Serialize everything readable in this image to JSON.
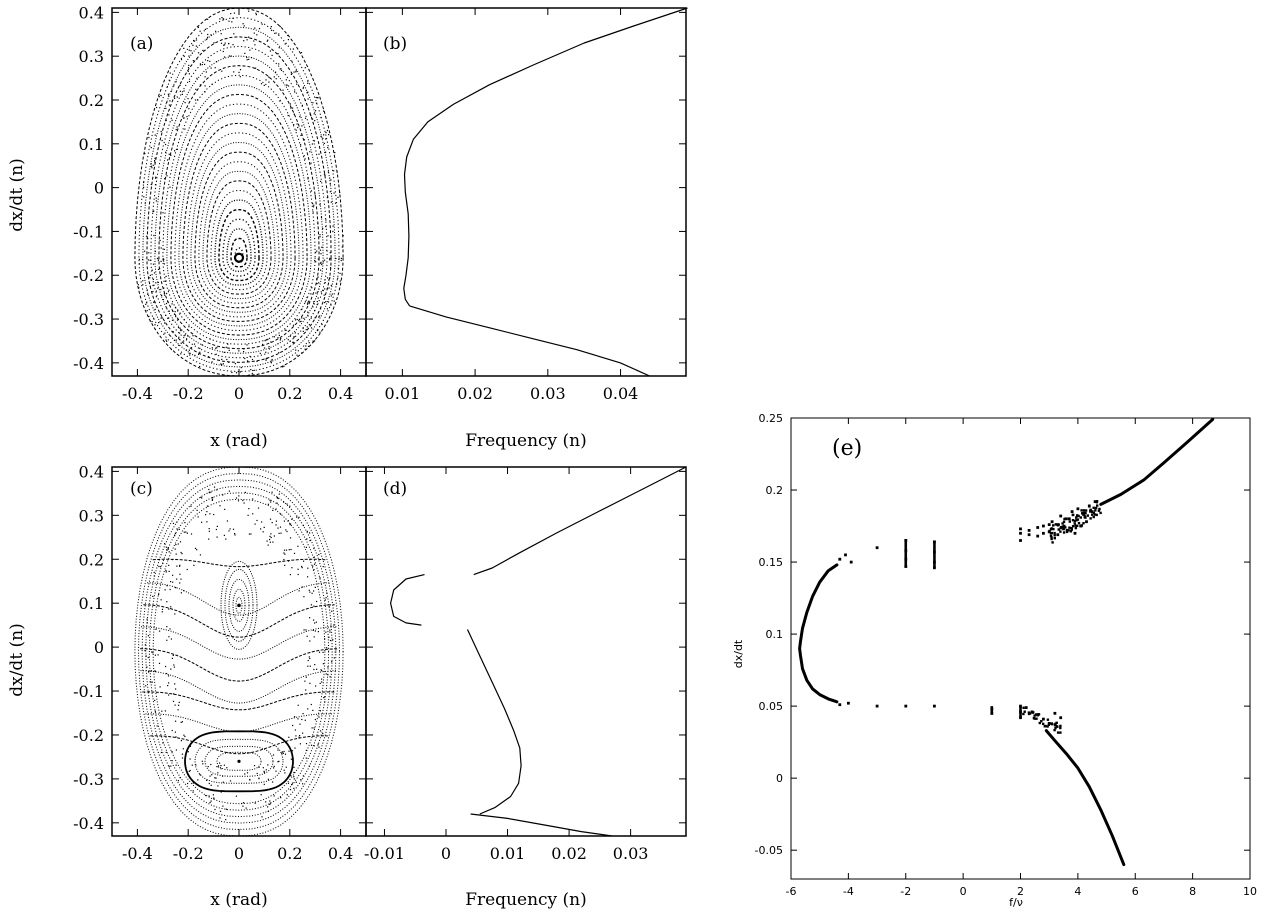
{
  "figure": {
    "colors": {
      "ink": "#000000",
      "background": "#ffffff"
    }
  },
  "chart_data": [
    {
      "panel": "a",
      "label": "(a)",
      "type": "scatter",
      "xlabel": "x (rad)",
      "ylabel": "dx/dt (n)",
      "xlim": [
        -0.5,
        0.5
      ],
      "ylim": [
        -0.43,
        0.41
      ],
      "xticks": [
        "-0.4",
        "-0.2",
        "0",
        "0.2",
        "0.4"
      ],
      "yticks": [
        "-0.4",
        "-0.3",
        "-0.2",
        "-0.1",
        "0",
        "0.1",
        "0.2",
        "0.3",
        "0.4"
      ],
      "center": [
        0,
        -0.16
      ],
      "separatrix": 0.41,
      "outer_level": 0.41,
      "grid": false
    },
    {
      "panel": "b",
      "label": "(b)",
      "type": "line",
      "xlabel": "Frequency (n)",
      "xlim": [
        0.005,
        0.049
      ],
      "ylim": [
        -0.43,
        0.41
      ],
      "xticks": [
        "0.01",
        "0.02",
        "0.03",
        "0.04"
      ],
      "series": [
        {
          "x": [
            0.0492,
            0.042,
            0.035,
            0.028,
            0.022,
            0.017,
            0.0135,
            0.0115,
            0.0106,
            0.0103,
            0.0104,
            0.0108,
            0.0109,
            0.0108,
            0.0105,
            0.0102,
            0.0104,
            0.011
          ],
          "y": [
            0.41,
            0.37,
            0.33,
            0.28,
            0.235,
            0.19,
            0.15,
            0.11,
            0.07,
            0.03,
            -0.01,
            -0.06,
            -0.11,
            -0.16,
            -0.2,
            -0.23,
            -0.255,
            -0.27
          ]
        },
        {
          "x": [
            0.011,
            0.016,
            0.022,
            0.028,
            0.034,
            0.04,
            0.044
          ],
          "y": [
            -0.27,
            -0.295,
            -0.32,
            -0.345,
            -0.37,
            -0.4,
            -0.43
          ]
        }
      ],
      "grid": false
    },
    {
      "panel": "c",
      "label": "(c)",
      "type": "scatter",
      "xlabel": "x (rad)",
      "ylabel": "dx/dt (n)",
      "xlim": [
        -0.5,
        0.5
      ],
      "ylim": [
        -0.43,
        0.41
      ],
      "xticks": [
        "-0.4",
        "-0.2",
        "0",
        "0.2",
        "0.4"
      ],
      "yticks": [
        "-0.4",
        "-0.3",
        "-0.2",
        "-0.1",
        "0",
        "0.1",
        "0.2",
        "0.3",
        "0.4"
      ],
      "centers": [
        [
          0,
          0.095
        ],
        [
          0,
          -0.26
        ]
      ],
      "grid": false
    },
    {
      "panel": "d",
      "label": "(d)",
      "type": "line",
      "xlabel": "Frequency (n)",
      "xlim": [
        -0.013,
        0.039
      ],
      "ylim": [
        -0.43,
        0.41
      ],
      "xticks": [
        "-0.01",
        "0",
        "0.01",
        "0.02",
        "0.03"
      ],
      "series": [
        {
          "x": [
            0.039,
            0.032,
            0.025,
            0.018,
            0.012,
            0.0075,
            0.0045
          ],
          "y": [
            0.41,
            0.36,
            0.31,
            0.26,
            0.215,
            0.18,
            0.165
          ]
        },
        {
          "x": [
            -0.0035,
            -0.0065,
            -0.0085,
            -0.009,
            -0.0085,
            -0.0065,
            -0.004
          ],
          "y": [
            0.165,
            0.155,
            0.13,
            0.1,
            0.07,
            0.055,
            0.05
          ]
        },
        {
          "x": [
            0.0035,
            0.0055,
            0.0075,
            0.0095,
            0.011,
            0.012,
            0.0122,
            0.0118,
            0.0105,
            0.008,
            0.0055
          ],
          "y": [
            0.04,
            -0.02,
            -0.08,
            -0.14,
            -0.19,
            -0.23,
            -0.27,
            -0.31,
            -0.34,
            -0.365,
            -0.38
          ]
        },
        {
          "x": [
            0.004,
            0.01,
            0.016,
            0.022,
            0.027
          ],
          "y": [
            -0.38,
            -0.39,
            -0.405,
            -0.42,
            -0.43
          ]
        }
      ],
      "grid": false
    },
    {
      "panel": "e",
      "label": "(e)",
      "type": "scatter",
      "xlabel": "f/ν",
      "ylabel": "dx/dt",
      "xlim": [
        -6,
        10
      ],
      "ylim": [
        -0.07,
        0.25
      ],
      "xticks": [
        "-6",
        "-4",
        "-2",
        "0",
        "2",
        "4",
        "6",
        "8",
        "10"
      ],
      "yticks": [
        "-0.05",
        "0",
        "0.05",
        "0.1",
        "0.15",
        "0.2",
        "0.25"
      ],
      "series": [
        {
          "x": [
            -4.4,
            -4.7,
            -5.0,
            -5.25,
            -5.45,
            -5.6,
            -5.67,
            -5.7,
            -5.67,
            -5.6,
            -5.45,
            -5.25,
            -5.0,
            -4.7,
            -4.4
          ],
          "y": [
            0.148,
            0.144,
            0.136,
            0.126,
            0.115,
            0.104,
            0.095,
            0.09,
            0.085,
            0.076,
            0.068,
            0.062,
            0.058,
            0.055,
            0.053
          ]
        },
        {
          "x": [
            4.8,
            5.5,
            6.3,
            7.0,
            7.8,
            8.7
          ],
          "y": [
            0.19,
            0.197,
            0.207,
            0.219,
            0.233,
            0.249
          ]
        },
        {
          "x": [
            2.9,
            3.2,
            3.6,
            4.0,
            4.4,
            4.8,
            5.2,
            5.6
          ],
          "y": [
            0.033,
            0.026,
            0.017,
            0.007,
            -0.006,
            -0.022,
            -0.04,
            -0.06
          ]
        },
        {
          "x": [
            -4.3,
            -4.1,
            -3.9,
            -3.0,
            -2.0,
            -2.0,
            -2.0,
            -1.0,
            -1.0,
            -1.0,
            1.0,
            1.0,
            2.0,
            2.0,
            2.0,
            2.3,
            2.6,
            2.8,
            3.0,
            3.1,
            3.3,
            3.4,
            3.6,
            3.8,
            4.0,
            4.2,
            4.4,
            4.5,
            4.6,
            4.3,
            4.1,
            3.9,
            3.7,
            3.5,
            3.3,
            3.0,
            2.8,
            2.6,
            2.3,
            2.0,
            2.0,
            2.0,
            2.2,
            2.4,
            2.6,
            2.8,
            3.0,
            3.2,
            3.4,
            -4.3,
            -4.0,
            -3.0,
            -2.0,
            -1.0,
            -2.0,
            -1.0
          ],
          "y": [
            0.152,
            0.155,
            0.15,
            0.16,
            0.165,
            0.158,
            0.152,
            0.164,
            0.157,
            0.15,
            0.048,
            0.045,
            0.17,
            0.165,
            0.173,
            0.172,
            0.168,
            0.175,
            0.171,
            0.178,
            0.176,
            0.182,
            0.18,
            0.185,
            0.187,
            0.183,
            0.189,
            0.185,
            0.192,
            0.178,
            0.175,
            0.17,
            0.18,
            0.173,
            0.169,
            0.176,
            0.17,
            0.174,
            0.169,
            0.05,
            0.046,
            0.042,
            0.049,
            0.046,
            0.044,
            0.041,
            0.038,
            0.045,
            0.042,
            0.051,
            0.052,
            0.05,
            0.05,
            0.05,
            0.147,
            0.146
          ]
        }
      ],
      "grid": false
    }
  ]
}
